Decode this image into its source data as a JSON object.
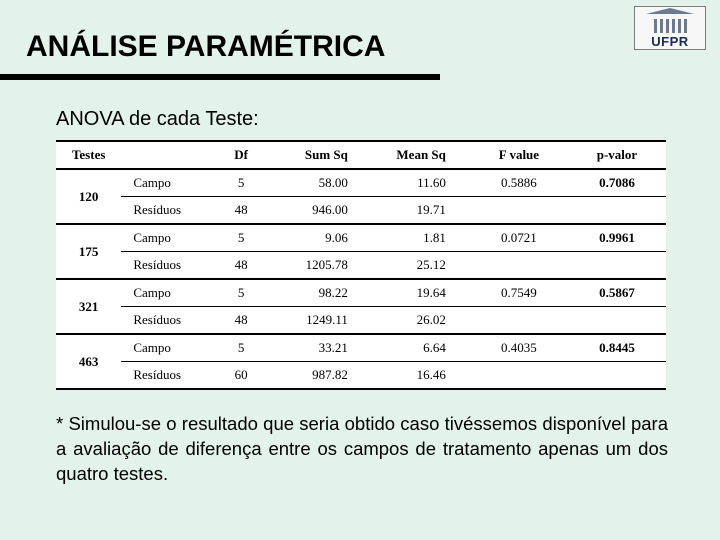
{
  "logo": {
    "label": "UFPR"
  },
  "title": "ANÁLISE PARAMÉTRICA",
  "subtitle": "ANOVA de cada Teste:",
  "table": {
    "headers": [
      "Testes",
      "",
      "Df",
      "Sum Sq",
      "Mean Sq",
      "F value",
      "p-valor"
    ],
    "groups": [
      {
        "testes": "120",
        "rows": [
          {
            "source": "Campo",
            "df": "5",
            "sumsq": "58.00",
            "meansq": "11.60",
            "fvalue": "0.5886",
            "pvalor": "0.7086"
          },
          {
            "source": "Resíduos",
            "df": "48",
            "sumsq": "946.00",
            "meansq": "19.71",
            "fvalue": "",
            "pvalor": ""
          }
        ]
      },
      {
        "testes": "175",
        "rows": [
          {
            "source": "Campo",
            "df": "5",
            "sumsq": "9.06",
            "meansq": "1.81",
            "fvalue": "0.0721",
            "pvalor": "0.9961"
          },
          {
            "source": "Resíduos",
            "df": "48",
            "sumsq": "1205.78",
            "meansq": "25.12",
            "fvalue": "",
            "pvalor": ""
          }
        ]
      },
      {
        "testes": "321",
        "rows": [
          {
            "source": "Campo",
            "df": "5",
            "sumsq": "98.22",
            "meansq": "19.64",
            "fvalue": "0.7549",
            "pvalor": "0.5867"
          },
          {
            "source": "Resíduos",
            "df": "48",
            "sumsq": "1249.11",
            "meansq": "26.02",
            "fvalue": "",
            "pvalor": ""
          }
        ]
      },
      {
        "testes": "463",
        "rows": [
          {
            "source": "Campo",
            "df": "5",
            "sumsq": "33.21",
            "meansq": "6.64",
            "fvalue": "0.4035",
            "pvalor": "0.8445"
          },
          {
            "source": "Resíduos",
            "df": "60",
            "sumsq": "987.82",
            "meansq": "16.46",
            "fvalue": "",
            "pvalor": ""
          }
        ]
      }
    ]
  },
  "footnote": "* Simulou-se o resultado que seria obtido caso tivéssemos disponível para a avaliação de diferença entre os campos de tratamento apenas um dos quatro testes.",
  "colors": {
    "background": "#e4f2ec",
    "text": "#000000",
    "cell_bg": "#ffffff",
    "border": "#000000"
  }
}
